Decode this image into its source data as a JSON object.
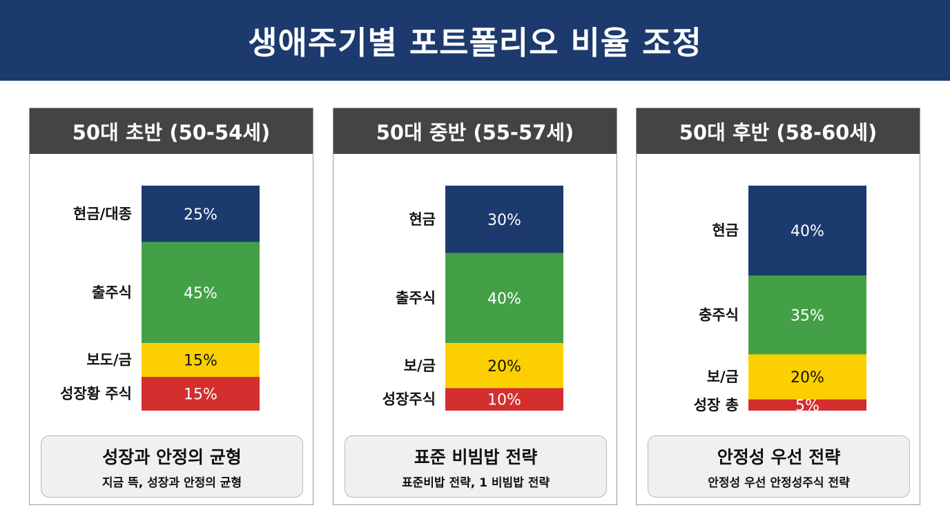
{
  "title": "생애주기별 포트폴리오 비율 조정",
  "chart_data": [
    {
      "type": "bar",
      "stacked": true,
      "title": "50대 초반 (50-54세)",
      "categories": [
        "현금/대종",
        "출주식",
        "보도/금",
        "성장황 주식"
      ],
      "values": [
        25,
        45,
        15,
        15
      ],
      "labels": [
        "25%",
        "45%",
        "15%",
        "15%"
      ],
      "colors": [
        "#1c3a6e",
        "#44a047",
        "#fcd000",
        "#d32f2f"
      ],
      "label_colors": [
        "#ffffff",
        "#ffffff",
        "#111111",
        "#ffffff"
      ],
      "note_title": "성장과 안정의 균형",
      "note_sub": "지금 뜩, 성장과 안정의 균형"
    },
    {
      "type": "bar",
      "stacked": true,
      "title": "50대 중반 (55-57세)",
      "categories": [
        "현금",
        "출주식",
        "보/금",
        "성장주식"
      ],
      "values": [
        30,
        40,
        20,
        10
      ],
      "labels": [
        "30%",
        "40%",
        "20%",
        "10%"
      ],
      "colors": [
        "#1c3a6e",
        "#44a047",
        "#fcd000",
        "#d32f2f"
      ],
      "label_colors": [
        "#ffffff",
        "#ffffff",
        "#111111",
        "#ffffff"
      ],
      "note_title": "표준 비빔밥 전략",
      "note_sub": "표준비밥 전략, 1 비빔밥 전략"
    },
    {
      "type": "bar",
      "stacked": true,
      "title": "50대 후반 (58-60세)",
      "categories": [
        "현금",
        "충주식",
        "보/금",
        "성장 총"
      ],
      "values": [
        40,
        35,
        20,
        5
      ],
      "labels": [
        "40%",
        "35%",
        "20%",
        "5%"
      ],
      "colors": [
        "#1c3a6e",
        "#44a047",
        "#fcd000",
        "#d32f2f"
      ],
      "label_colors": [
        "#ffffff",
        "#ffffff",
        "#111111",
        "#ffffff"
      ],
      "note_title": "안정성 우선 전략",
      "note_sub": "안정성 우선 안정성주식 전략"
    }
  ]
}
